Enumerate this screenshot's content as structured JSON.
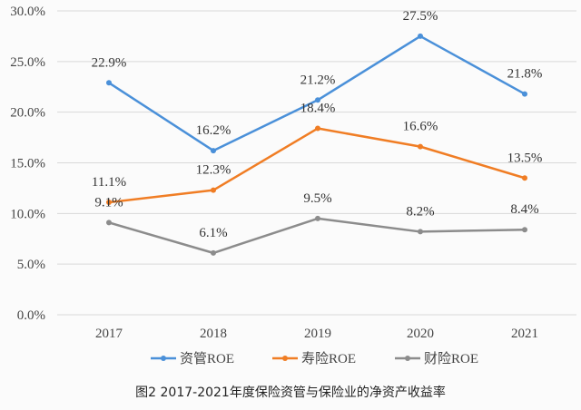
{
  "chart_data": {
    "type": "line",
    "title": "",
    "caption": "图2 2017-2021年度保险资管与保险业的净资产收益率",
    "xlabel": "",
    "ylabel": "",
    "categories": [
      "2017",
      "2018",
      "2019",
      "2020",
      "2021"
    ],
    "ylim": [
      0,
      30
    ],
    "yticks": [
      "0.0%",
      "5.0%",
      "10.0%",
      "15.0%",
      "20.0%",
      "25.0%",
      "30.0%"
    ],
    "grid": true,
    "legend_position": "bottom",
    "series": [
      {
        "name": "资管ROE",
        "color": "#4a90d9",
        "values": [
          22.9,
          16.2,
          21.2,
          27.5,
          21.8
        ],
        "labels": [
          "22.9%",
          "16.2%",
          "21.2%",
          "27.5%",
          "21.8%"
        ]
      },
      {
        "name": "寿险ROE",
        "color": "#f07d24",
        "values": [
          11.1,
          12.3,
          18.4,
          16.6,
          13.5
        ],
        "labels": [
          "11.1%",
          "12.3%",
          "18.4%",
          "16.6%",
          "13.5%"
        ]
      },
      {
        "name": "财险ROE",
        "color": "#8c8c8c",
        "values": [
          9.1,
          6.1,
          9.5,
          8.2,
          8.4
        ],
        "labels": [
          "9.1%",
          "6.1%",
          "9.5%",
          "8.2%",
          "8.4%"
        ]
      }
    ]
  }
}
